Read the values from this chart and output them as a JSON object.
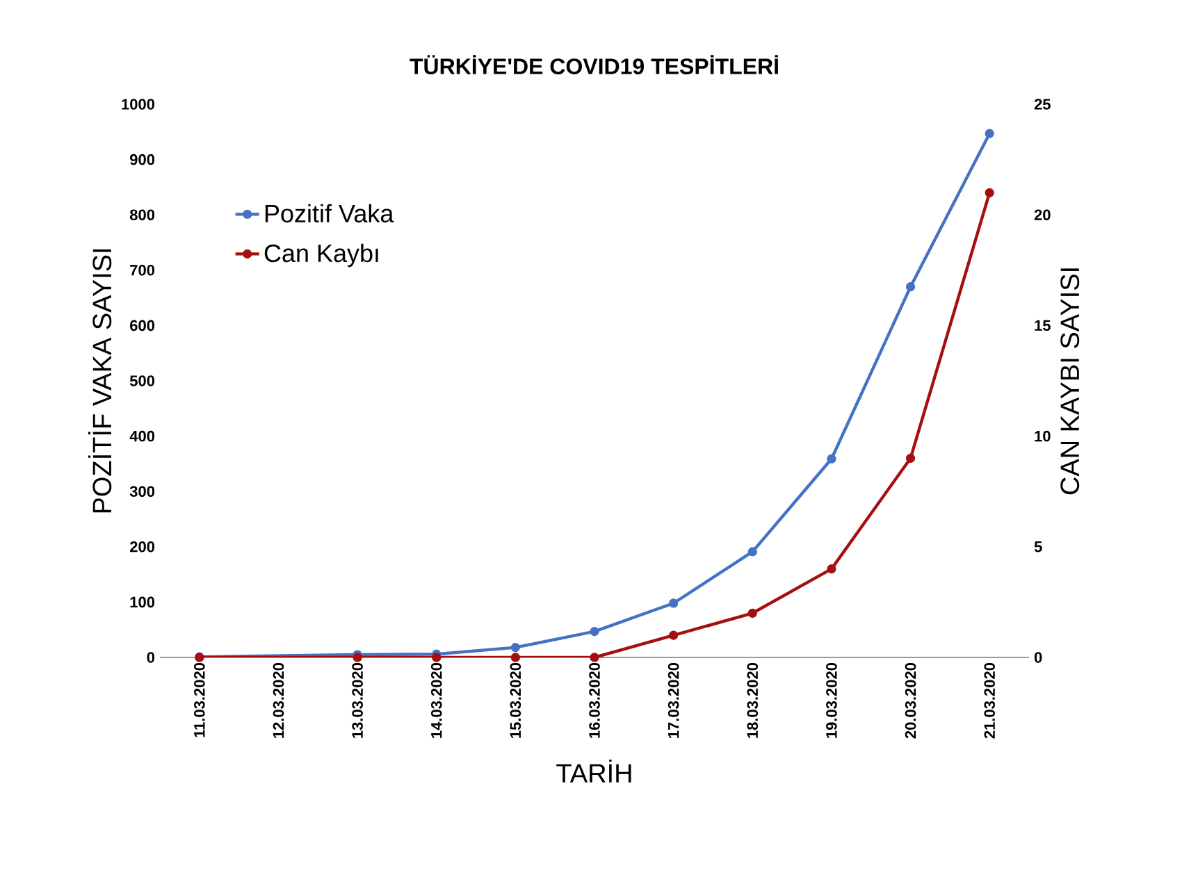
{
  "chart_data": {
    "type": "line",
    "title": "TÜRKİYE'DE COVID19 TESPİTLERİ",
    "xlabel": "TARİH",
    "ylabel": "POZİTİF VAKA SAYISI",
    "y2label": "CAN KAYBI SAYISI",
    "categories": [
      "11.03.2020",
      "12.03.2020",
      "13.03.2020",
      "14.03.2020",
      "15.03.2020",
      "16.03.2020",
      "17.03.2020",
      "18.03.2020",
      "19.03.2020",
      "20.03.2020",
      "21.03.2020"
    ],
    "series": [
      {
        "name": "Pozitif Vaka",
        "color": "#4472c4",
        "values": [
          1,
          null,
          5,
          6,
          18,
          47,
          98,
          191,
          359,
          670,
          947
        ]
      },
      {
        "name": "Can Kaybı",
        "color": "#a50f0f",
        "axis": "y2",
        "values": [
          0,
          null,
          0,
          0,
          0,
          0,
          1,
          2,
          4,
          9,
          21
        ]
      }
    ],
    "ylim": [
      0,
      1000
    ],
    "yticks": [
      0,
      100,
      200,
      300,
      400,
      500,
      600,
      700,
      800,
      900,
      1000
    ],
    "y2lim": [
      0,
      25
    ],
    "y2ticks": [
      0,
      5,
      10,
      15,
      20,
      25
    ],
    "legend": "top left",
    "marker": "circle",
    "line_style": "solid",
    "grid": false
  }
}
